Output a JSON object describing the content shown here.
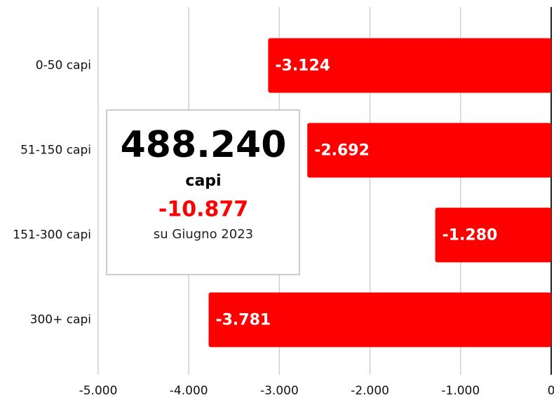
{
  "chart_data": {
    "type": "barh",
    "categories": [
      "0-50 capi",
      "51-150 capi",
      "151-300 capi",
      "300+ capi"
    ],
    "values": [
      -3124,
      -2692,
      -1280,
      -3781
    ],
    "value_labels": [
      "-3.124",
      "-2.692",
      "-1.280",
      "-3.781"
    ],
    "color": "#ff0000",
    "xlim": [
      -5000,
      0
    ],
    "xticks": [
      {
        "value": -5000,
        "label": "-5.000"
      },
      {
        "value": -4000,
        "label": "-4.000"
      },
      {
        "value": -3000,
        "label": "-3.000"
      },
      {
        "value": -2000,
        "label": "-2.000"
      },
      {
        "value": -1000,
        "label": "-1.000"
      },
      0
    ],
    "grid": true,
    "annotation": {
      "value": "488.240",
      "unit": "capi",
      "change": "-10.877",
      "note": "su Giugno 2023"
    }
  }
}
